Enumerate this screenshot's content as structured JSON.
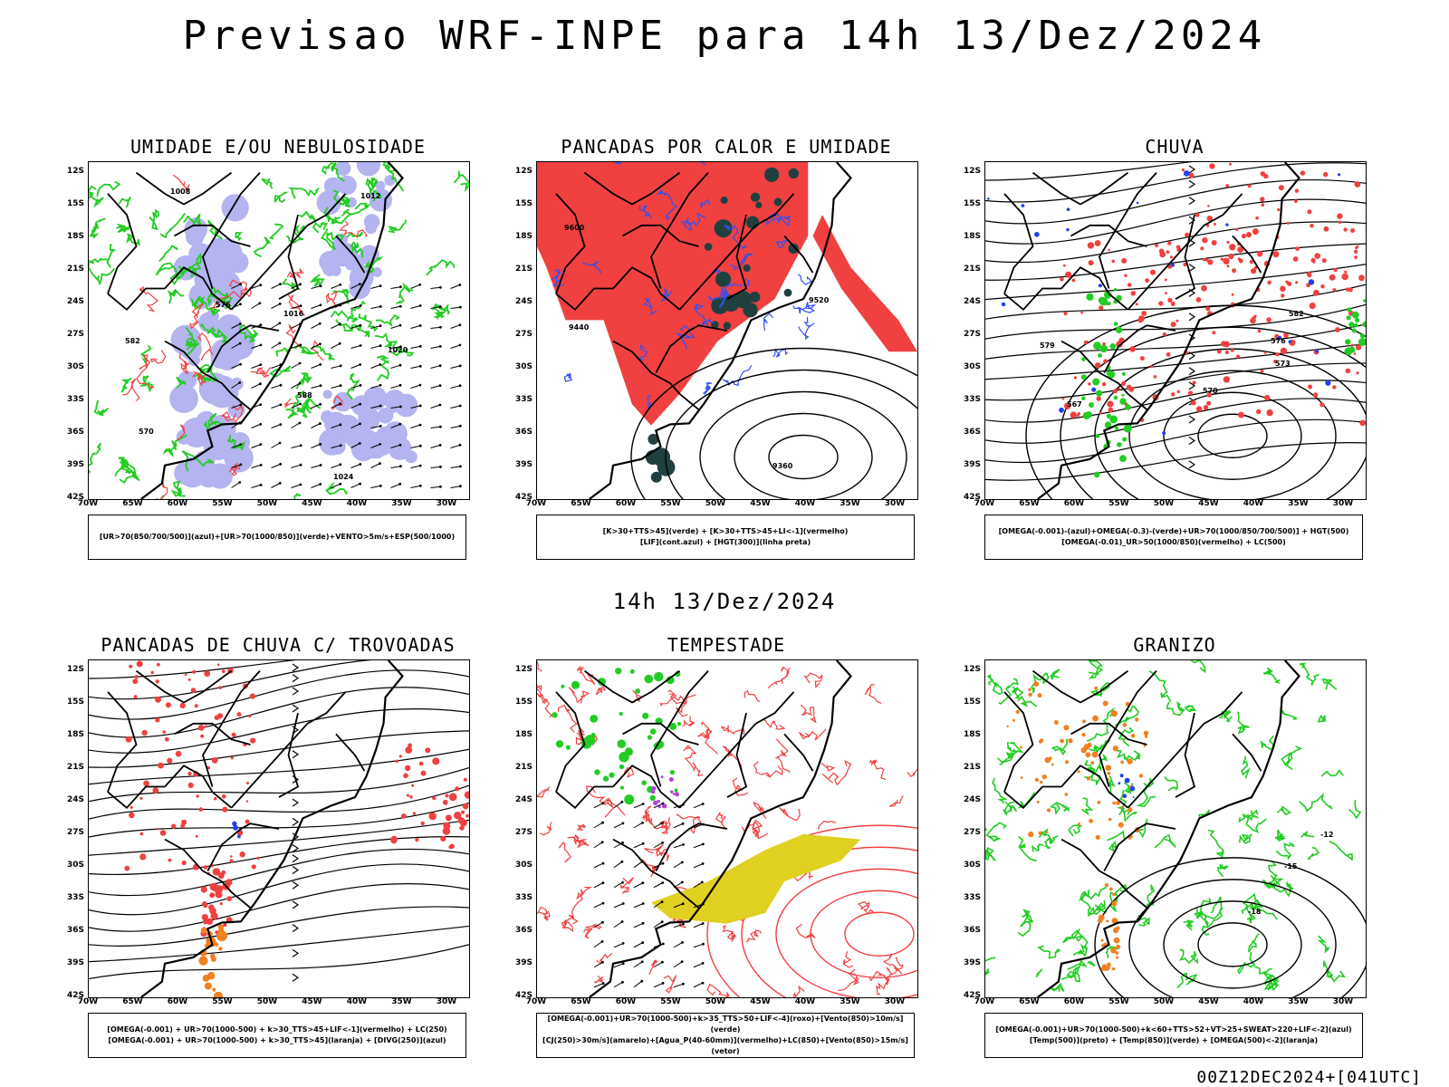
{
  "title": "Previsao WRF-INPE  para 14h 13/Dez/2024",
  "middle_time": "14h 13/Dez/2024",
  "footer": "00Z12DEC2024+[041UTC]",
  "lat_labels": [
    "12S",
    "15S",
    "18S",
    "21S",
    "24S",
    "27S",
    "30S",
    "33S",
    "36S",
    "39S",
    "42S"
  ],
  "lon_labels": [
    "70W",
    "65W",
    "60W",
    "55W",
    "50W",
    "45W",
    "40W",
    "35W",
    "30W"
  ],
  "colors": {
    "blue_fill": "#b4b4f0",
    "green": "#22cc22",
    "red": "#f04040",
    "dark_green": "#204040",
    "orange": "#f08020",
    "yellow": "#e0d020",
    "contour": "#000000"
  },
  "panels": [
    {
      "title": "UMIDADE E/OU NEBULOSIDADE",
      "legend": [
        "[UR>70(850/700/500)](azul)+[UR>70(1000/850)](verde)+VENTO>5m/s+ESP(500/1000)"
      ],
      "contour_labels": [
        "1008",
        "1012",
        "1016",
        "1020",
        "1024",
        "570",
        "576",
        "582",
        "588"
      ]
    },
    {
      "title": "PANCADAS POR CALOR E UMIDADE",
      "legend": [
        "[K>30+TTS>45](verde) + [K>30+TTS>45+LI<-1](vermelho)",
        "[LIF](cont.azul) + [HGT(300)](linha preta)"
      ],
      "contour_labels": [
        "9600",
        "9520",
        "9440",
        "9360"
      ]
    },
    {
      "title": "CHUVA",
      "legend": [
        "[OMEGA(-0.001)-(azul)+OMEGA(-0.3)-(verde)+UR>70(1000/850/700/500)] + HGT(500)",
        "[OMEGA(-0.01)_UR>50(1000/850)(vermelho) + LC(500)"
      ],
      "contour_labels": [
        "582",
        "579",
        "576",
        "573",
        "570",
        "567"
      ]
    },
    {
      "title": "PANCADAS DE CHUVA C/ TROVOADAS",
      "legend": [
        "[OMEGA(-0.001) + UR>70(1000-500) + k>30_TTS>45+LIF<-1](vermelho) + LC(250)",
        "[OMEGA(-0.001) + UR>70(1000-500) + k>30_TTS>45](laranja) + [DIVG(250)](azul)"
      ],
      "contour_labels": []
    },
    {
      "title": "TEMPESTADE",
      "legend": [
        "[OMEGA(-0.001)+UR>70(1000-500)+k>35_TTS>50+LIF<-4](roxo)+[Vento(850)>10m/s](verde)",
        "[CJ(250)>30m/s](amarelo)+[Agua_P(40-60mm)](vermelho)+LC(850)+[Vento(850)>15m/s](vetor)"
      ],
      "contour_labels": []
    },
    {
      "title": "GRANIZO",
      "legend": [
        "[OMEGA(-0.001)+UR>70(1000-500)+k<60+TTS>52+VT>25+SWEAT>220+LIF<-2](azul)",
        "[Temp(500)](preto) + [Temp(850)](verde) + [OMEGA(500)<-2](laranja)"
      ],
      "contour_labels": [
        "-12",
        "-15",
        "-18"
      ]
    }
  ]
}
